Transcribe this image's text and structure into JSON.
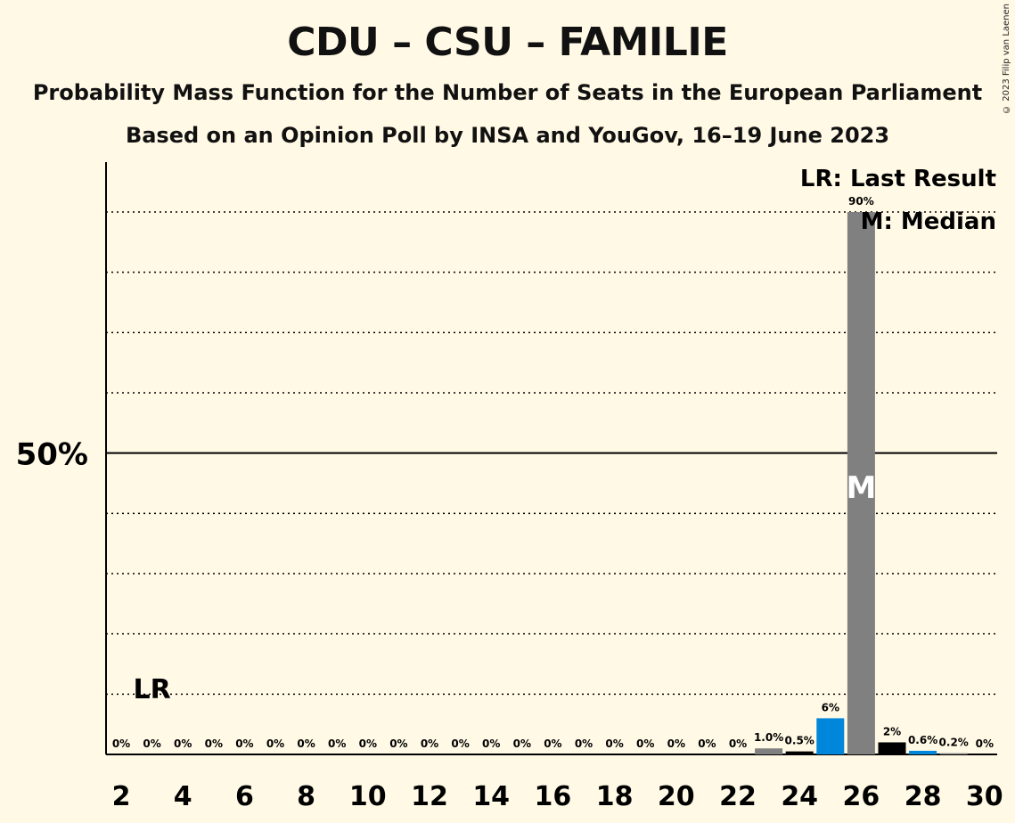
{
  "title": "CDU – CSU – FAMILIE",
  "subtitle1": "Probability Mass Function for the Number of Seats in the European Parliament",
  "subtitle2": "Based on an Opinion Poll by INSA and YouGov, 16–19 June 2023",
  "copyright": "© 2023 Filip van Laenen",
  "chart_data": {
    "type": "bar",
    "x": [
      2,
      3,
      4,
      5,
      6,
      7,
      8,
      9,
      10,
      11,
      12,
      13,
      14,
      15,
      16,
      17,
      18,
      19,
      20,
      21,
      22,
      23,
      24,
      25,
      26,
      27,
      28,
      29,
      30
    ],
    "values": [
      0,
      0,
      0,
      0,
      0,
      0,
      0,
      0,
      0,
      0,
      0,
      0,
      0,
      0,
      0,
      0,
      0,
      0,
      0,
      0,
      0,
      1.0,
      0.5,
      6,
      90,
      2,
      0.6,
      0.2,
      0
    ],
    "value_labels": [
      "0%",
      "0%",
      "0%",
      "0%",
      "0%",
      "0%",
      "0%",
      "0%",
      "0%",
      "0%",
      "0%",
      "0%",
      "0%",
      "0%",
      "0%",
      "0%",
      "0%",
      "0%",
      "0%",
      "0%",
      "0%",
      "1.0%",
      "0.5%",
      "6%",
      "90%",
      "2%",
      "0.6%",
      "0.2%",
      "0%"
    ],
    "bar_colors": {
      "23": "#808080",
      "24": "#000000",
      "25": "#0087dc",
      "26": "#808080",
      "27": "#000000",
      "28": "#0087dc",
      "29": "#808080"
    },
    "xticks": [
      2,
      4,
      6,
      8,
      10,
      12,
      14,
      16,
      18,
      20,
      22,
      24,
      26,
      28,
      30
    ],
    "ylim": [
      0,
      100
    ],
    "y_tick_label": "50%",
    "y_tick_value": 50,
    "gridlines_dotted": [
      10,
      20,
      30,
      40,
      60,
      70,
      80,
      90
    ],
    "last_result_seat": 3,
    "last_result_label": "LR",
    "median_seat": 26,
    "median_label": "M",
    "legend": [
      "LR: Last Result",
      "M: Median"
    ],
    "legend_position": "top-right"
  }
}
